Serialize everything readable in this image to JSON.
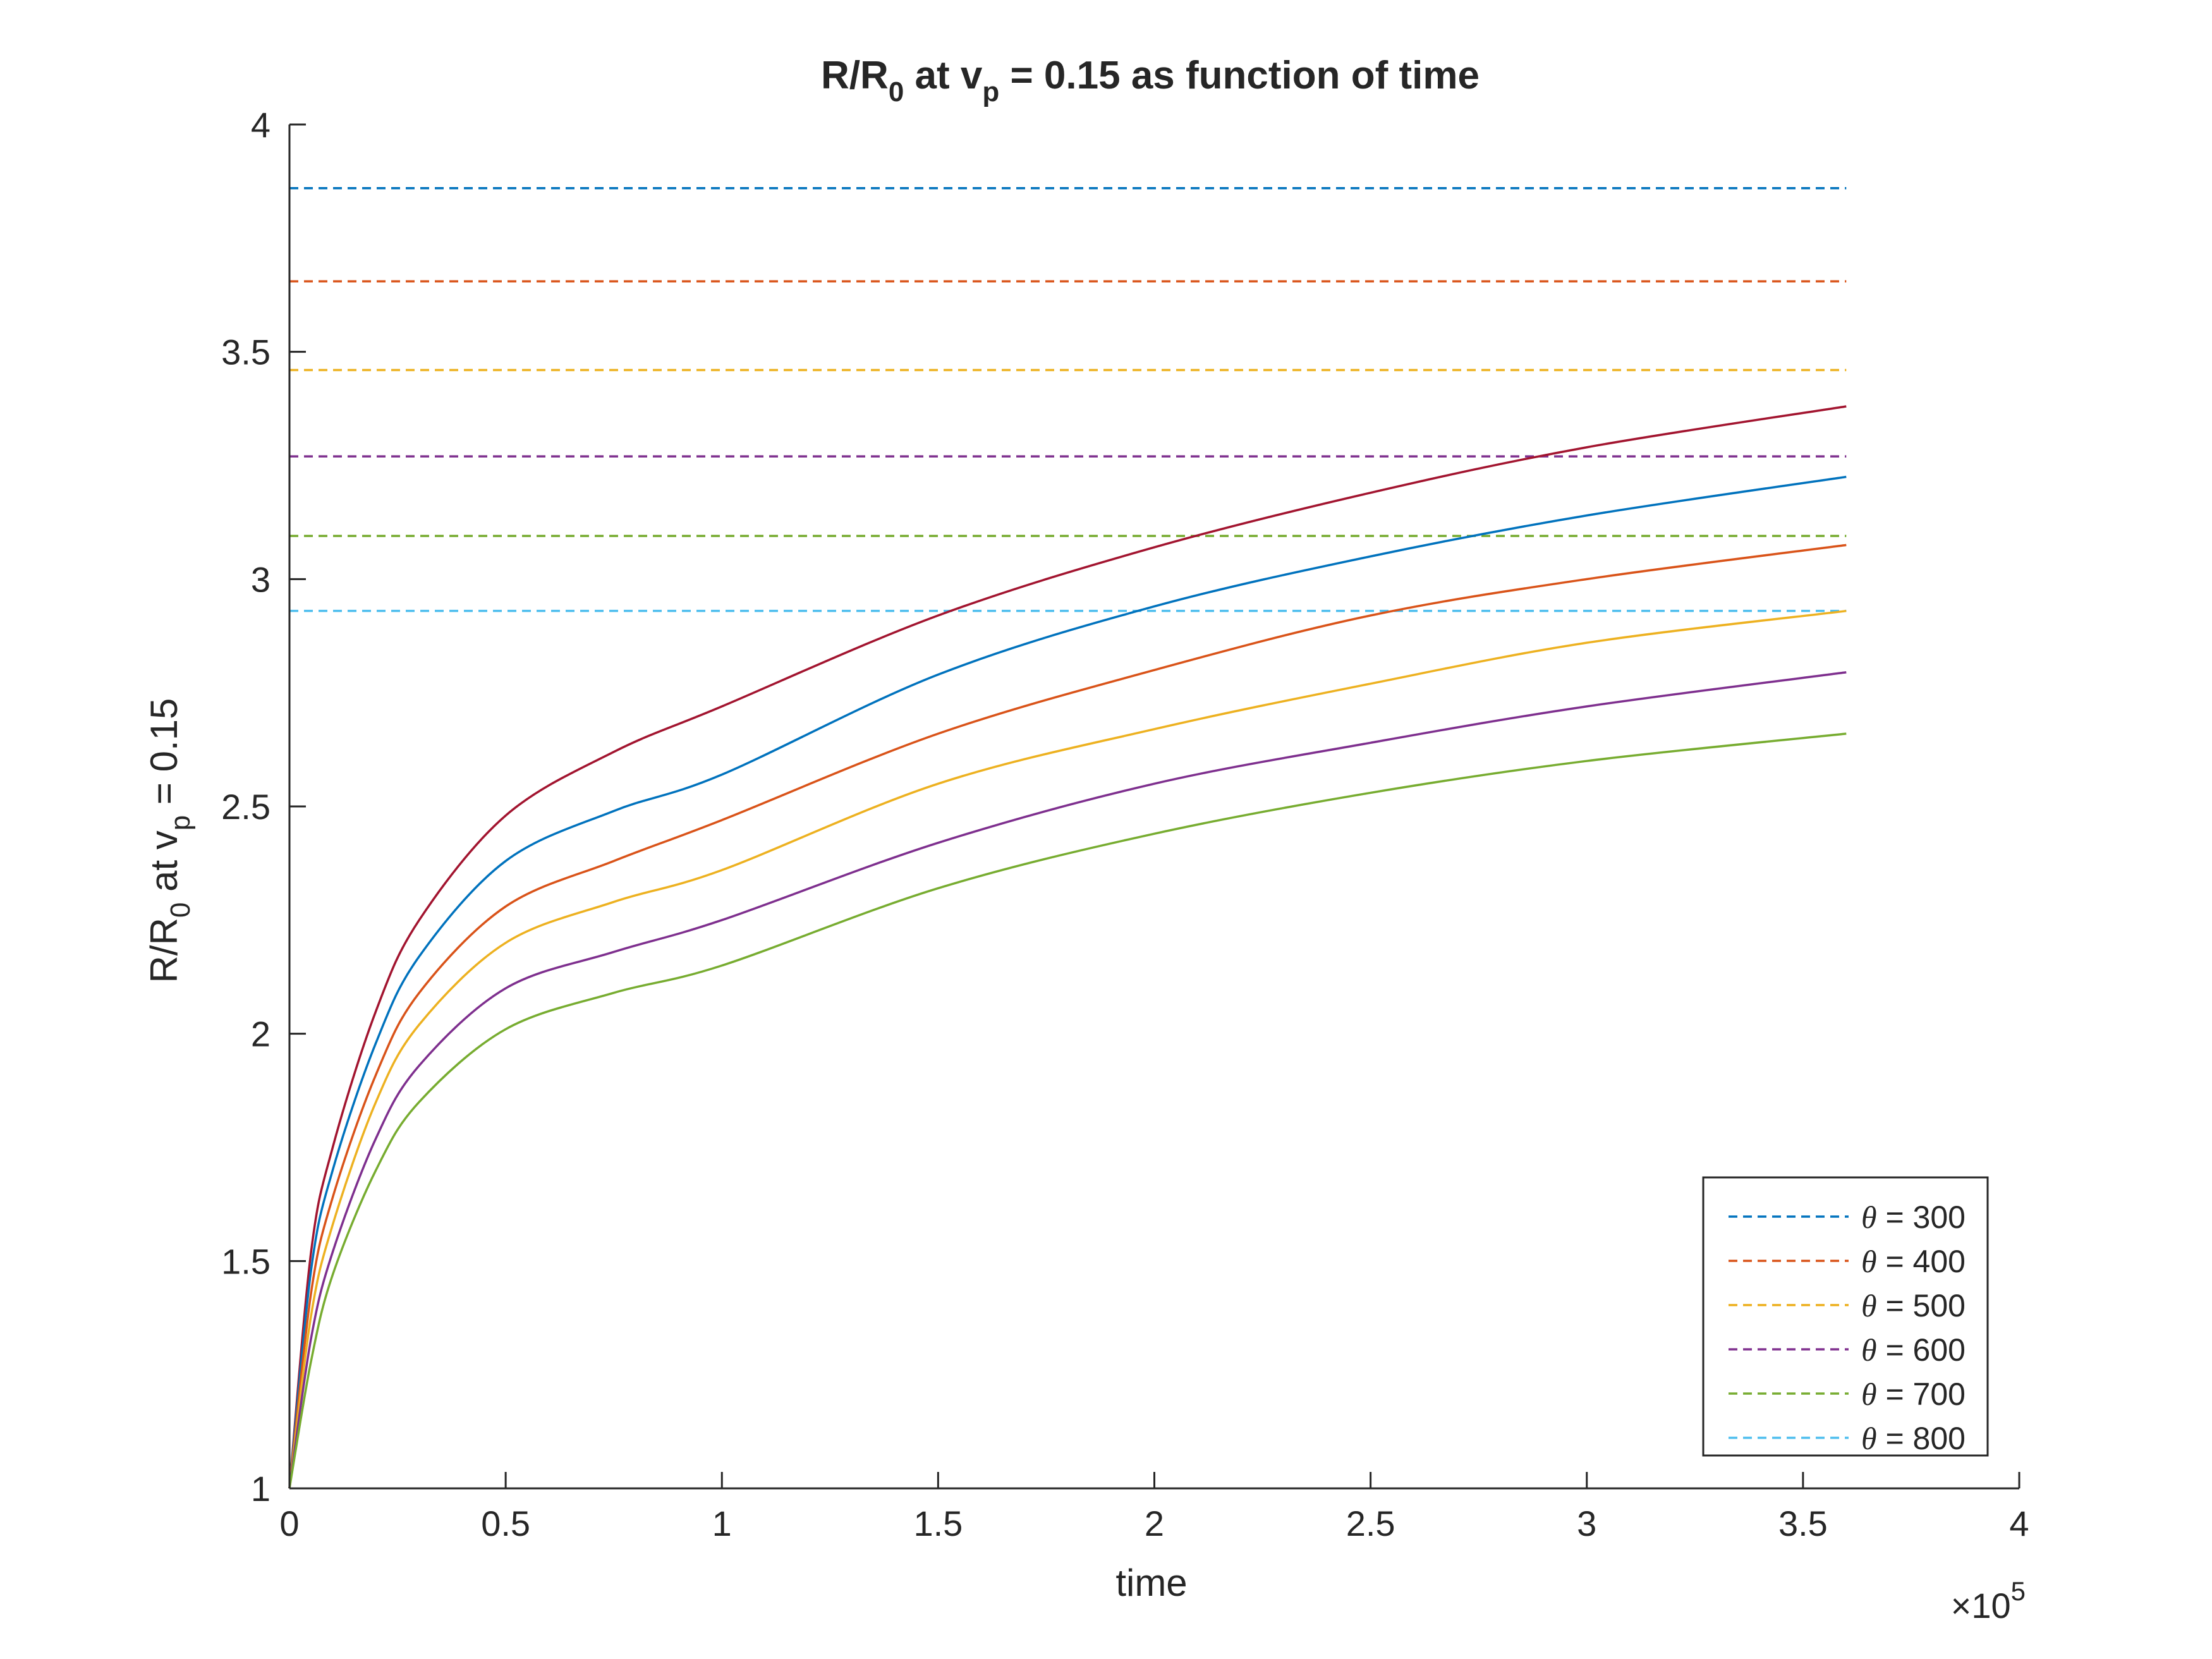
{
  "chart_data": {
    "type": "line",
    "title": {
      "main": "R/R",
      "sub0": "0",
      "mid": " at v",
      "subp": "p",
      "rest": " = 0.15 as function of time"
    },
    "ylabel": {
      "main": "R/R",
      "sub0": "0",
      "mid": " at v",
      "subp": "p",
      "rest": " = 0.15"
    },
    "xlabel": "time",
    "x_exponent": {
      "times": "×10",
      "power": "5"
    },
    "xlim": [
      0,
      400000
    ],
    "ylim": [
      1,
      4
    ],
    "x_ticks": [
      0,
      50000,
      100000,
      150000,
      200000,
      250000,
      300000,
      350000,
      400000
    ],
    "x_tick_labels": [
      "0",
      "0.5",
      "1",
      "1.5",
      "2",
      "2.5",
      "3",
      "3.5",
      "4"
    ],
    "y_ticks": [
      1,
      1.5,
      2,
      2.5,
      3,
      3.5,
      4
    ],
    "y_tick_labels": [
      "1",
      "1.5",
      "2",
      "2.5",
      "3",
      "3.5",
      "4"
    ],
    "grid": false,
    "legend_position": "bottom-right",
    "dashed_series": [
      {
        "name": "θ = 300",
        "theta": "θ",
        "label": " = 300",
        "color": "#0072BD",
        "x": [
          0,
          360000
        ],
        "y": [
          3.86,
          3.86
        ]
      },
      {
        "name": "θ = 400",
        "theta": "θ",
        "label": " = 400",
        "color": "#D95319",
        "x": [
          0,
          360000
        ],
        "y": [
          3.655,
          3.655
        ]
      },
      {
        "name": "θ = 500",
        "theta": "θ",
        "label": " = 500",
        "color": "#EDB120",
        "x": [
          0,
          360000
        ],
        "y": [
          3.46,
          3.46
        ]
      },
      {
        "name": "θ = 600",
        "theta": "θ",
        "label": " = 600",
        "color": "#7E2F8E",
        "x": [
          0,
          360000
        ],
        "y": [
          3.27,
          3.27
        ]
      },
      {
        "name": "θ = 700",
        "theta": "θ",
        "label": " = 700",
        "color": "#77AC30",
        "x": [
          0,
          360000
        ],
        "y": [
          3.095,
          3.095
        ]
      },
      {
        "name": "θ = 800",
        "theta": "θ",
        "label": " = 800",
        "color": "#4DBEEE",
        "x": [
          0,
          360000
        ],
        "y": [
          2.93,
          2.93
        ]
      }
    ],
    "solid_series": [
      {
        "color": "#A2142F",
        "x": [
          0,
          5000,
          10000,
          20000,
          30000,
          50000,
          75000,
          100000,
          150000,
          200000,
          250000,
          300000,
          360000
        ],
        "y": [
          1.0,
          1.52,
          1.75,
          2.05,
          2.25,
          2.48,
          2.62,
          2.72,
          2.92,
          3.07,
          3.19,
          3.29,
          3.38
        ]
      },
      {
        "color": "#0072BD",
        "x": [
          0,
          5000,
          10000,
          20000,
          30000,
          50000,
          75000,
          100000,
          150000,
          200000,
          250000,
          300000,
          360000
        ],
        "y": [
          1.0,
          1.48,
          1.7,
          1.98,
          2.17,
          2.38,
          2.49,
          2.57,
          2.79,
          2.94,
          3.05,
          3.14,
          3.225
        ]
      },
      {
        "color": "#D95319",
        "x": [
          0,
          5000,
          10000,
          20000,
          30000,
          50000,
          75000,
          100000,
          150000,
          200000,
          250000,
          300000,
          360000
        ],
        "y": [
          1.0,
          1.43,
          1.64,
          1.91,
          2.09,
          2.28,
          2.38,
          2.47,
          2.66,
          2.8,
          2.92,
          3.0,
          3.075
        ]
      },
      {
        "color": "#EDB120",
        "x": [
          0,
          5000,
          10000,
          20000,
          30000,
          50000,
          75000,
          100000,
          150000,
          200000,
          250000,
          300000,
          360000
        ],
        "y": [
          1.0,
          1.38,
          1.58,
          1.85,
          2.02,
          2.2,
          2.29,
          2.36,
          2.55,
          2.67,
          2.77,
          2.86,
          2.93
        ]
      },
      {
        "color": "#7E2F8E",
        "x": [
          0,
          5000,
          10000,
          20000,
          30000,
          50000,
          75000,
          100000,
          150000,
          200000,
          250000,
          300000,
          360000
        ],
        "y": [
          1.0,
          1.33,
          1.52,
          1.77,
          1.93,
          2.1,
          2.18,
          2.25,
          2.42,
          2.55,
          2.64,
          2.72,
          2.795
        ]
      },
      {
        "color": "#77AC30",
        "x": [
          0,
          5000,
          10000,
          20000,
          30000,
          50000,
          75000,
          100000,
          150000,
          200000,
          250000,
          300000,
          360000
        ],
        "y": [
          1.0,
          1.28,
          1.47,
          1.7,
          1.85,
          2.01,
          2.09,
          2.15,
          2.32,
          2.44,
          2.53,
          2.6,
          2.66
        ]
      }
    ]
  }
}
